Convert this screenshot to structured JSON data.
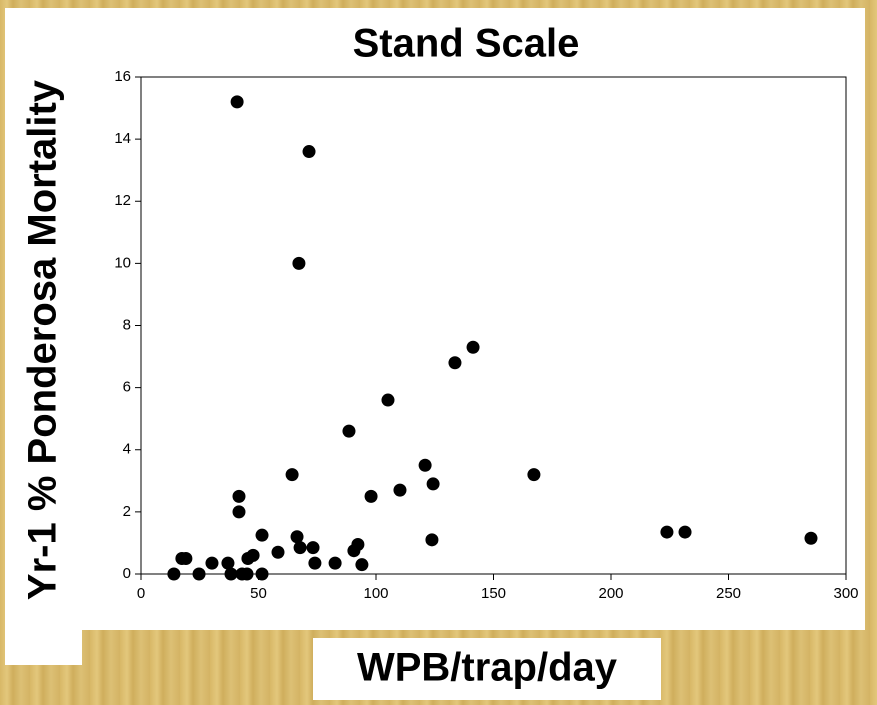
{
  "chart_data": {
    "type": "scatter",
    "title": "Stand Scale",
    "x_label": "WPB/trap/day",
    "y_label": "Yr-1 % Ponderosa Mortality",
    "color": "#000000",
    "x": [
      40.9,
      71.5,
      67.2,
      141.3,
      133.6,
      105.1,
      88.5,
      167.2,
      64.3,
      120.9,
      124.3,
      110.2,
      97.9,
      41.7,
      41.7,
      51.5,
      66.4,
      123.8,
      223.8,
      231.5,
      285.1,
      67.7,
      73.2,
      92.3,
      90.6,
      58.3,
      47.7,
      45.5,
      74,
      82.6,
      94,
      30.2,
      37,
      17.4,
      19.1,
      14,
      24.7,
      38.3,
      43,
      45.1,
      51.5
    ],
    "values": [
      15.2,
      13.6,
      10.0,
      7.3,
      6.8,
      5.6,
      4.6,
      3.2,
      3.2,
      3.5,
      2.9,
      2.7,
      2.5,
      2.5,
      2.0,
      1.25,
      1.2,
      1.1,
      1.35,
      1.35,
      1.15,
      0.85,
      0.85,
      0.95,
      0.75,
      0.7,
      0.6,
      0.5,
      0.35,
      0.35,
      0.3,
      0.35,
      0.35,
      0.5,
      0.5,
      0,
      0,
      0,
      0,
      0,
      0
    ],
    "xlim": [
      0,
      300
    ],
    "xticks": [
      0,
      50,
      100,
      150,
      200,
      250,
      300
    ],
    "ylim": [
      0,
      16
    ],
    "yticks": [
      0,
      2,
      4,
      6,
      8,
      10,
      12,
      14,
      16
    ]
  }
}
